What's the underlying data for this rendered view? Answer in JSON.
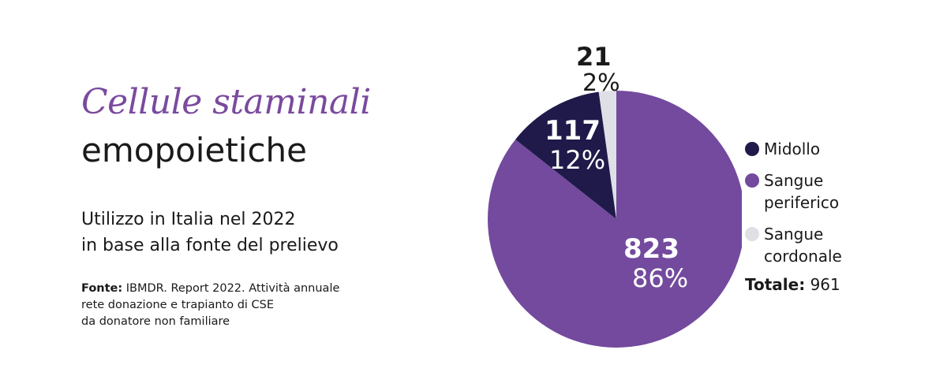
{
  "header": {
    "title_italic": "Cellule staminali",
    "title_main": "emopoietiche",
    "subtitle_line1": "Utilizzo in Italia nel 2022",
    "subtitle_line2": "in base alla fonte del prelievo",
    "source_label": "Fonte:",
    "source_line1": "IBMDR. Report 2022. Attività annuale",
    "source_line2": "rete donazione e trapianto di CSE",
    "source_line3": "da donatore non familiare"
  },
  "colors": {
    "midollo": "#1f1a4a",
    "sangue_periferico": "#734a9e",
    "sangue_cordonale": "#dfdfe6",
    "title_accent": "#7a4a9e"
  },
  "chart_data": {
    "type": "pie",
    "categories": [
      "Sangue periferico",
      "Midollo",
      "Sangue cordonale"
    ],
    "values": [
      823,
      117,
      21
    ],
    "value_labels": [
      "823",
      "117",
      "21"
    ],
    "percent_labels": [
      "86%",
      "12%",
      "2%"
    ]
  },
  "legend": {
    "items": [
      {
        "label_line1": "Midollo",
        "label_line2": ""
      },
      {
        "label_line1": "Sangue",
        "label_line2": "periferico"
      },
      {
        "label_line1": "Sangue",
        "label_line2": "cordonale"
      }
    ],
    "total_label": "Totale:",
    "total_value": "961"
  }
}
